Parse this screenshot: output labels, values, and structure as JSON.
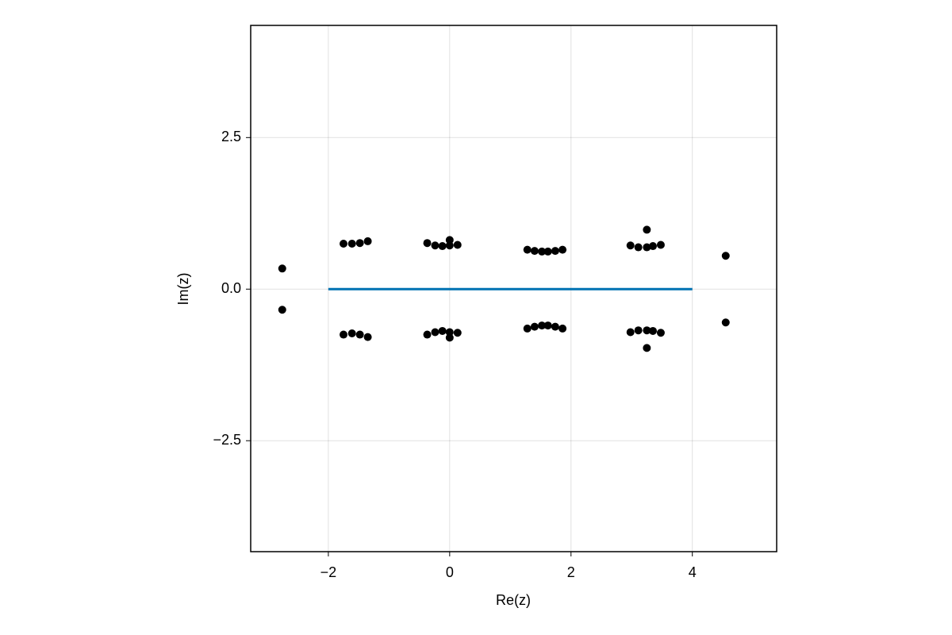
{
  "chart_data": {
    "type": "scatter",
    "x_label": "Re(z)",
    "y_label": "Im(z)",
    "xlim": [
      -3.28,
      5.39
    ],
    "ylim": [
      -4.33,
      4.35
    ],
    "xticks": [
      {
        "value": -2,
        "label": "−2"
      },
      0,
      2,
      4
    ],
    "yticks": [
      {
        "value": -2.5,
        "label": "−2.5"
      },
      {
        "value": 0,
        "label": "0.0"
      },
      2.5
    ],
    "grid": true,
    "series": [
      {
        "type": "line",
        "color": "#0072b2",
        "x": [
          -2,
          4
        ],
        "values": [
          0,
          0
        ]
      },
      {
        "type": "scatter",
        "color": "#000000",
        "x": [
          -2.76,
          -2.76,
          -1.75,
          -1.61,
          -1.48,
          -1.35,
          -1.75,
          -1.61,
          -1.48,
          -1.35,
          -0.37,
          -0.24,
          -0.12,
          0,
          0,
          0.13,
          -0.37,
          -0.24,
          -0.12,
          0,
          0,
          0.13,
          1.28,
          1.4,
          1.52,
          1.62,
          1.74,
          1.86,
          1.28,
          1.4,
          1.52,
          1.62,
          1.74,
          1.86,
          2.98,
          3.11,
          3.25,
          3.25,
          3.35,
          3.48,
          2.98,
          3.11,
          3.25,
          3.25,
          3.35,
          3.48,
          4.55,
          4.55
        ],
        "values": [
          0.34,
          -0.34,
          0.75,
          0.75,
          0.76,
          0.79,
          -0.75,
          -0.73,
          -0.75,
          -0.79,
          0.76,
          0.72,
          0.71,
          0.81,
          0.72,
          0.73,
          -0.75,
          -0.71,
          -0.69,
          -0.8,
          -0.71,
          -0.72,
          0.65,
          0.63,
          0.62,
          0.62,
          0.63,
          0.65,
          -0.65,
          -0.62,
          -0.6,
          -0.6,
          -0.62,
          -0.65,
          0.72,
          0.69,
          0.98,
          0.69,
          0.71,
          0.73,
          -0.71,
          -0.68,
          -0.97,
          -0.68,
          -0.69,
          -0.72,
          0.55,
          -0.55
        ]
      }
    ]
  }
}
